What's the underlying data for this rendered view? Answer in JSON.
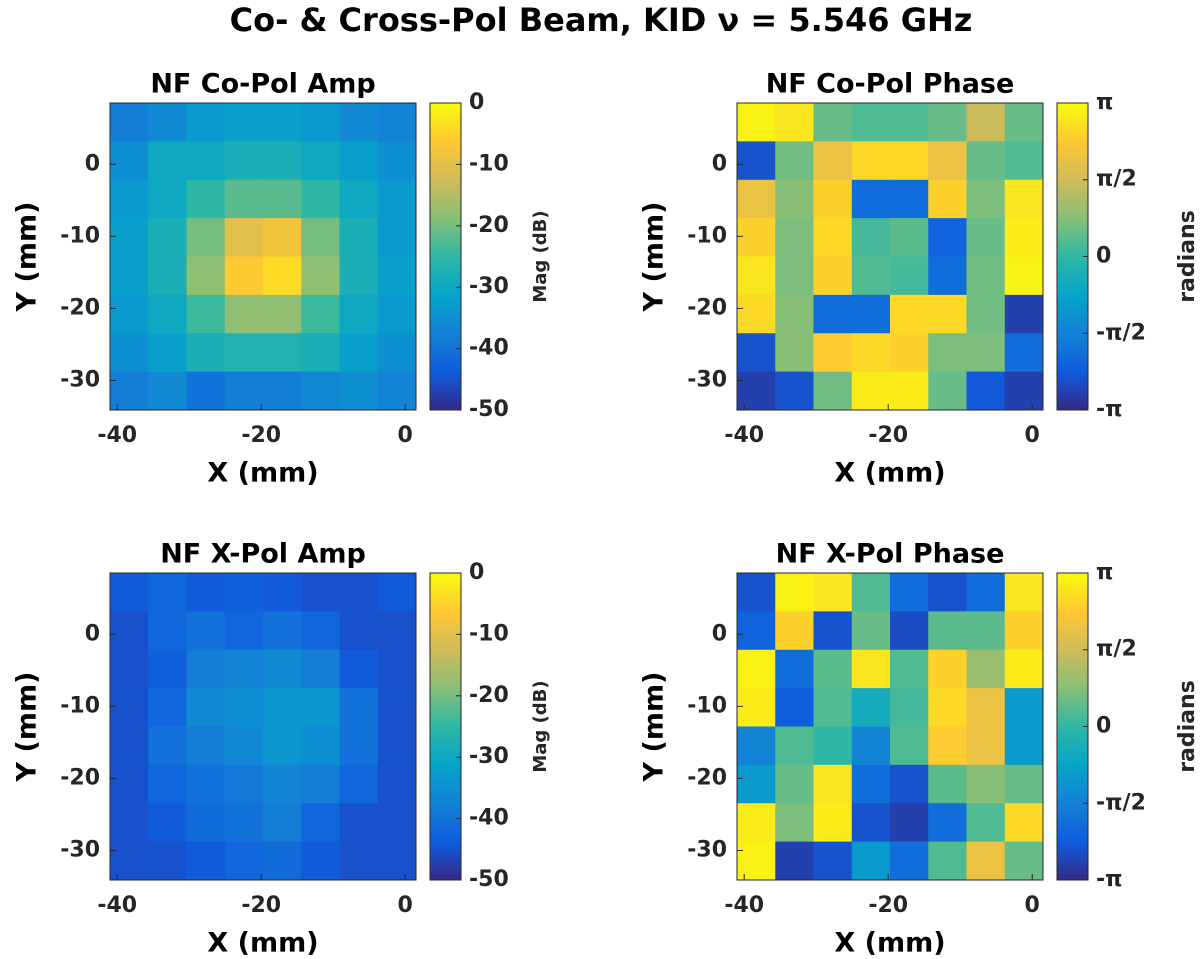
{
  "title": "Co- & Cross-Pol Beam, KID ν = 5.546 GHz",
  "chart_data": [
    {
      "type": "heatmap",
      "title": "NF Co-Pol Amp",
      "xlabel": "X (mm)",
      "ylabel": "Y (mm)",
      "colorbar_label": "Mag (dB)",
      "colormap": "parula",
      "xlim": [
        -41,
        1.5
      ],
      "ylim": [
        -34.1,
        8.5
      ],
      "xticks": [
        -40,
        -20,
        0
      ],
      "yticks": [
        -30,
        -20,
        -10,
        0
      ],
      "clim": [
        -50,
        0
      ],
      "cticks": [
        -50,
        -40,
        -30,
        -20,
        -10,
        0
      ],
      "z": [
        [
          -38,
          -36,
          -33,
          -32,
          -32,
          -33,
          -36,
          -37
        ],
        [
          -35,
          -30,
          -30,
          -28,
          -28,
          -30,
          -32,
          -35
        ],
        [
          -33,
          -30,
          -25,
          -22,
          -22,
          -25,
          -30,
          -33
        ],
        [
          -32,
          -28,
          -20,
          -10,
          -8,
          -20,
          -28,
          -33
        ],
        [
          -32,
          -28,
          -18,
          -6,
          -4,
          -18,
          -28,
          -32
        ],
        [
          -33,
          -30,
          -24,
          -18,
          -18,
          -24,
          -30,
          -33
        ],
        [
          -35,
          -32,
          -28,
          -27,
          -27,
          -28,
          -32,
          -35
        ],
        [
          -38,
          -36,
          -40,
          -38,
          -38,
          -36,
          -35,
          -37
        ]
      ]
    },
    {
      "type": "heatmap",
      "title": "NF Co-Pol Phase",
      "xlabel": "X (mm)",
      "ylabel": "Y (mm)",
      "colorbar_label": "radians",
      "colormap": "parula",
      "xlim": [
        -41,
        1.5
      ],
      "ylim": [
        -34.1,
        8.5
      ],
      "xticks": [
        -40,
        -20,
        0
      ],
      "yticks": [
        -30,
        -20,
        -10,
        0
      ],
      "clim": [
        -3.14159,
        3.14159
      ],
      "cticks": [
        {
          "value": -3.14159,
          "label": "-π"
        },
        {
          "value": -1.5708,
          "label": "-π/2"
        },
        0,
        {
          "value": 1.5708,
          "label": "π/2"
        },
        {
          "value": 3.14159,
          "label": "π"
        }
      ],
      "z": [
        [
          3.0,
          2.8,
          0.5,
          0.3,
          0.3,
          0.5,
          1.5,
          0.5
        ],
        [
          -2.5,
          0.6,
          2.0,
          2.6,
          2.6,
          2.0,
          0.5,
          0.3
        ],
        [
          2.0,
          0.8,
          2.5,
          -2.0,
          -2.0,
          2.5,
          0.7,
          2.8
        ],
        [
          2.5,
          0.7,
          2.6,
          0.2,
          0.4,
          -2.2,
          0.5,
          2.9
        ],
        [
          2.8,
          0.7,
          2.5,
          0.3,
          0.2,
          -2.0,
          0.6,
          3.0
        ],
        [
          2.6,
          0.8,
          -2.0,
          -2.0,
          2.6,
          2.6,
          0.6,
          -2.8
        ],
        [
          -2.5,
          0.8,
          2.4,
          2.6,
          2.5,
          0.7,
          0.7,
          -2.0
        ],
        [
          -2.8,
          -2.5,
          0.6,
          2.9,
          2.9,
          0.5,
          -2.4,
          -2.8
        ]
      ]
    },
    {
      "type": "heatmap",
      "title": "NF X-Pol Amp",
      "xlabel": "X (mm)",
      "ylabel": "Y (mm)",
      "colorbar_label": "Mag (dB)",
      "colormap": "parula",
      "xlim": [
        -41,
        1.5
      ],
      "ylim": [
        -34.1,
        8.5
      ],
      "xticks": [
        -40,
        -20,
        0
      ],
      "yticks": [
        -30,
        -20,
        -10,
        0
      ],
      "clim": [
        -50,
        0
      ],
      "cticks": [
        -50,
        -40,
        -30,
        -20,
        -10,
        0
      ],
      "z": [
        [
          -44,
          -42,
          -44,
          -43,
          -44,
          -45,
          -45,
          -44
        ],
        [
          -45,
          -42,
          -40,
          -42,
          -40,
          -42,
          -45,
          -45
        ],
        [
          -45,
          -43,
          -38,
          -37,
          -36,
          -38,
          -44,
          -45
        ],
        [
          -45,
          -42,
          -36,
          -35,
          -34,
          -34,
          -40,
          -45
        ],
        [
          -45,
          -40,
          -38,
          -36,
          -34,
          -35,
          -40,
          -45
        ],
        [
          -45,
          -42,
          -40,
          -39,
          -37,
          -38,
          -42,
          -45
        ],
        [
          -45,
          -44,
          -41,
          -40,
          -38,
          -42,
          -45,
          -45
        ],
        [
          -45,
          -45,
          -44,
          -42,
          -41,
          -44,
          -45,
          -45
        ]
      ]
    },
    {
      "type": "heatmap",
      "title": "NF X-Pol Phase",
      "xlabel": "X (mm)",
      "ylabel": "Y (mm)",
      "colorbar_label": "radians",
      "colormap": "parula",
      "xlim": [
        -41,
        1.5
      ],
      "ylim": [
        -34.1,
        8.5
      ],
      "xticks": [
        -40,
        -20,
        0
      ],
      "yticks": [
        -30,
        -20,
        -10,
        0
      ],
      "clim": [
        -3.14159,
        3.14159
      ],
      "cticks": [
        {
          "value": -3.14159,
          "label": "-π"
        },
        {
          "value": -1.5708,
          "label": "-π/2"
        },
        0,
        {
          "value": 1.5708,
          "label": "π/2"
        },
        {
          "value": 3.14159,
          "label": "π"
        }
      ],
      "z": [
        [
          -2.5,
          3.0,
          2.8,
          0.3,
          -2.0,
          -2.5,
          -2.0,
          2.8
        ],
        [
          -2.2,
          2.5,
          -2.5,
          0.5,
          -2.6,
          0.4,
          0.4,
          2.5
        ],
        [
          3.0,
          -2.0,
          0.4,
          2.8,
          0.3,
          2.5,
          1.0,
          2.9
        ],
        [
          2.9,
          -2.3,
          0.3,
          -0.5,
          0.2,
          2.6,
          2.0,
          -1.0
        ],
        [
          -1.5,
          0.3,
          0.0,
          -1.5,
          0.3,
          2.4,
          2.0,
          -1.0
        ],
        [
          -1.0,
          0.5,
          2.8,
          -2.0,
          -2.5,
          0.4,
          0.8,
          0.5
        ],
        [
          2.9,
          0.7,
          2.9,
          -2.5,
          -2.8,
          -2.0,
          0.3,
          2.6
        ],
        [
          3.0,
          -2.8,
          -2.5,
          -1.0,
          -2.0,
          0.3,
          2.0,
          0.5
        ]
      ]
    }
  ]
}
